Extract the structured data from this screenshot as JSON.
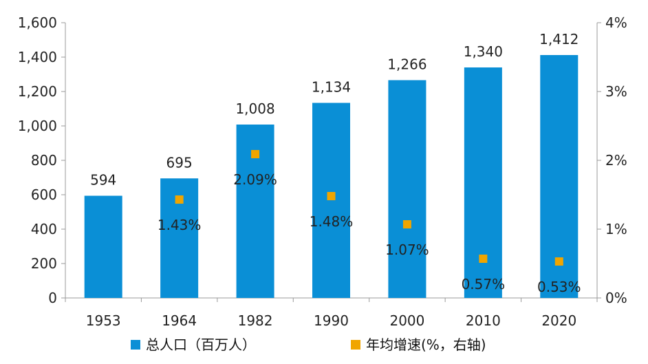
{
  "chart_data": {
    "type": "bar",
    "categories": [
      "1953",
      "1964",
      "1982",
      "1990",
      "2000",
      "2010",
      "2020"
    ],
    "series": [
      {
        "name": "总人口（百万人）",
        "type": "bar",
        "axis": "left",
        "color": "#0A8FD6",
        "values": [
          594,
          695,
          1008,
          1134,
          1266,
          1340,
          1412
        ],
        "labels": [
          "594",
          "695",
          "1,008",
          "1,134",
          "1,266",
          "1,340",
          "1,412"
        ]
      },
      {
        "name": "年均增速(%，右轴)",
        "type": "scatter",
        "axis": "right",
        "color": "#F0A500",
        "values": [
          null,
          1.43,
          2.09,
          1.48,
          1.07,
          0.57,
          0.53
        ],
        "labels": [
          null,
          "1.43%",
          "2.09%",
          "1.48%",
          "1.07%",
          "0.57%",
          "0.53%"
        ]
      }
    ],
    "yleft": {
      "ylim": [
        0,
        1600
      ],
      "ticks": [
        "0",
        "200",
        "400",
        "600",
        "800",
        "1,000",
        "1,200",
        "1,400",
        "1,600"
      ]
    },
    "yright": {
      "ylim": [
        0,
        4
      ],
      "ticks": [
        "0%",
        "1%",
        "2%",
        "3%",
        "4%"
      ]
    },
    "grid": false,
    "legend": "bottom"
  }
}
